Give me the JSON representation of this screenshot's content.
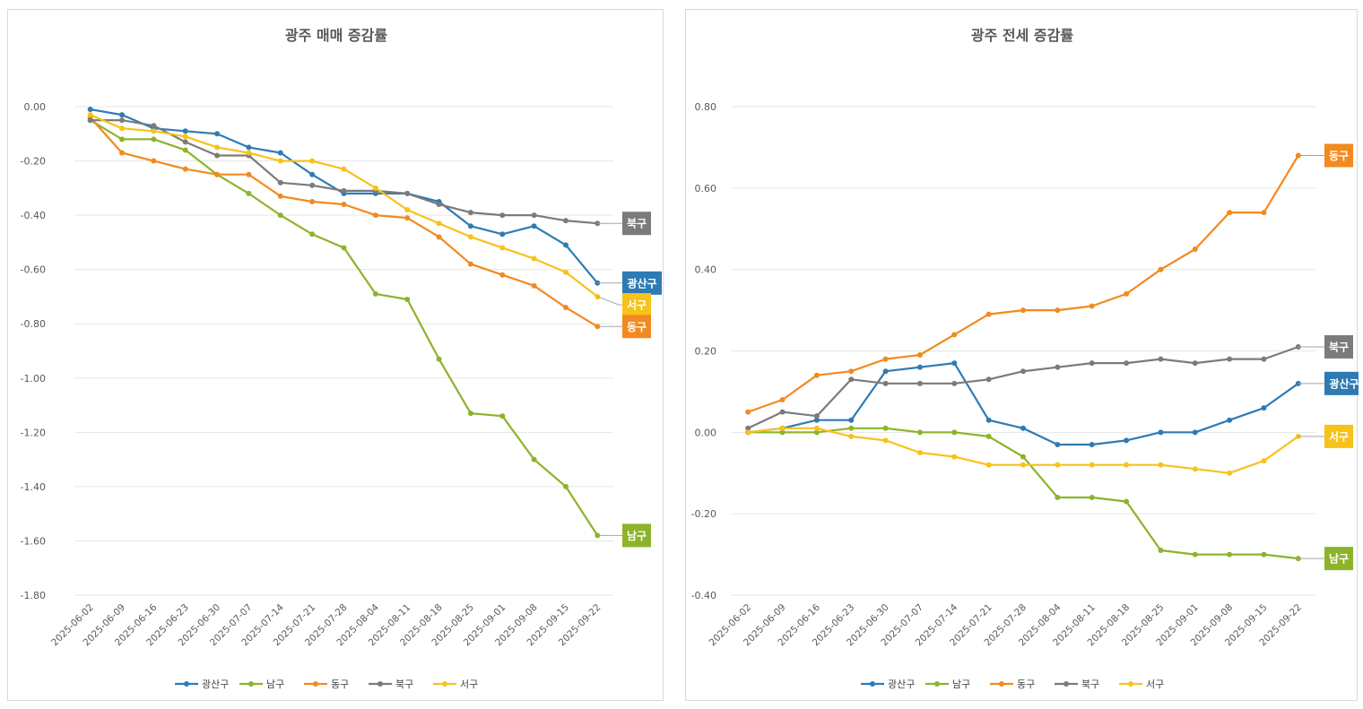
{
  "chart_data": [
    {
      "type": "line",
      "title": "광주 매매 증감률",
      "xlabel": "",
      "ylabel": "",
      "categories": [
        "2025-06-02",
        "2025-06-09",
        "2025-06-16",
        "2025-06-23",
        "2025-06-30",
        "2025-07-07",
        "2025-07-14",
        "2025-07-21",
        "2025-07-28",
        "2025-08-04",
        "2025-08-11",
        "2025-08-18",
        "2025-08-25",
        "2025-09-01",
        "2025-09-08",
        "2025-09-15",
        "2025-09-22"
      ],
      "ylim": [
        -1.8,
        0.0
      ],
      "yticks": [
        "0.00",
        "-0.20",
        "-0.40",
        "-0.60",
        "-0.80",
        "-1.00",
        "-1.20",
        "-1.40",
        "-1.60",
        "-1.80"
      ],
      "grid": true,
      "legend": "bottom",
      "series": [
        {
          "name": "광산구",
          "color": "#2e7bb4",
          "values": [
            -0.01,
            -0.03,
            -0.08,
            -0.09,
            -0.1,
            -0.15,
            -0.17,
            -0.25,
            -0.32,
            -0.32,
            -0.32,
            -0.35,
            -0.44,
            -0.47,
            -0.44,
            -0.51,
            -0.65
          ]
        },
        {
          "name": "남구",
          "color": "#8db32b",
          "values": [
            -0.05,
            -0.12,
            -0.12,
            -0.16,
            -0.25,
            -0.32,
            -0.4,
            -0.47,
            -0.52,
            -0.69,
            -0.71,
            -0.93,
            -1.13,
            -1.14,
            -1.3,
            -1.4,
            -1.58
          ]
        },
        {
          "name": "동구",
          "color": "#f28a1e",
          "values": [
            -0.04,
            -0.17,
            -0.2,
            -0.23,
            -0.25,
            -0.25,
            -0.33,
            -0.35,
            -0.36,
            -0.4,
            -0.41,
            -0.48,
            -0.58,
            -0.62,
            -0.66,
            -0.74,
            -0.81
          ]
        },
        {
          "name": "북구",
          "color": "#7b7b7b",
          "values": [
            -0.05,
            -0.05,
            -0.07,
            -0.13,
            -0.18,
            -0.18,
            -0.28,
            -0.29,
            -0.31,
            -0.31,
            -0.32,
            -0.36,
            -0.39,
            -0.4,
            -0.4,
            -0.42,
            -0.43
          ]
        },
        {
          "name": "서구",
          "color": "#f7c21a",
          "values": [
            -0.03,
            -0.08,
            -0.09,
            -0.11,
            -0.15,
            -0.17,
            -0.2,
            -0.2,
            -0.23,
            -0.3,
            -0.38,
            -0.43,
            -0.48,
            -0.52,
            -0.56,
            -0.61,
            -0.7
          ]
        }
      ],
      "end_labels": [
        {
          "series": "북구",
          "text": "북구",
          "color": "#7b7b7b",
          "anchor": -0.43
        },
        {
          "series": "광산구",
          "text": "광산구",
          "color": "#2e7bb4",
          "anchor": -0.65
        },
        {
          "series": "서구",
          "text": "서구",
          "color": "#f7c21a",
          "anchor": -0.73
        },
        {
          "series": "동구",
          "text": "동구",
          "color": "#f28a1e",
          "anchor": -0.81
        },
        {
          "series": "남구",
          "text": "남구",
          "color": "#8db32b",
          "anchor": -1.58
        }
      ]
    },
    {
      "type": "line",
      "title": "광주 전세 증감률",
      "xlabel": "",
      "ylabel": "",
      "categories": [
        "2025-06-02",
        "2025-06-09",
        "2025-06-16",
        "2025-06-23",
        "2025-06-30",
        "2025-07-07",
        "2025-07-14",
        "2025-07-21",
        "2025-07-28",
        "2025-08-04",
        "2025-08-11",
        "2025-08-18",
        "2025-08-25",
        "2025-09-01",
        "2025-09-08",
        "2025-09-15",
        "2025-09-22"
      ],
      "ylim": [
        -0.4,
        0.8
      ],
      "yticks": [
        "0.80",
        "0.60",
        "0.40",
        "0.20",
        "0.00",
        "-0.20",
        "-0.40"
      ],
      "grid": true,
      "legend": "bottom",
      "series": [
        {
          "name": "광산구",
          "color": "#2e7bb4",
          "values": [
            0.0,
            0.01,
            0.03,
            0.03,
            0.15,
            0.16,
            0.17,
            0.03,
            0.01,
            -0.03,
            -0.03,
            -0.02,
            0.0,
            0.0,
            0.03,
            0.06,
            0.12
          ]
        },
        {
          "name": "남구",
          "color": "#8db32b",
          "values": [
            0.0,
            0.0,
            0.0,
            0.01,
            0.01,
            0.0,
            0.0,
            -0.01,
            -0.06,
            -0.16,
            -0.16,
            -0.17,
            -0.29,
            -0.3,
            -0.3,
            -0.3,
            -0.31
          ]
        },
        {
          "name": "동구",
          "color": "#f28a1e",
          "values": [
            0.05,
            0.08,
            0.14,
            0.15,
            0.18,
            0.19,
            0.24,
            0.29,
            0.3,
            0.3,
            0.31,
            0.34,
            0.4,
            0.45,
            0.54,
            0.54,
            0.68
          ]
        },
        {
          "name": "북구",
          "color": "#7b7b7b",
          "values": [
            0.01,
            0.05,
            0.04,
            0.13,
            0.12,
            0.12,
            0.12,
            0.13,
            0.15,
            0.16,
            0.17,
            0.17,
            0.18,
            0.17,
            0.18,
            0.18,
            0.21
          ]
        },
        {
          "name": "서구",
          "color": "#f7c21a",
          "values": [
            0.0,
            0.01,
            0.01,
            -0.01,
            -0.02,
            -0.05,
            -0.06,
            -0.08,
            -0.08,
            -0.08,
            -0.08,
            -0.08,
            -0.08,
            -0.09,
            -0.1,
            -0.07,
            -0.01
          ]
        }
      ],
      "end_labels": [
        {
          "series": "동구",
          "text": "동구",
          "color": "#f28a1e",
          "anchor": 0.68
        },
        {
          "series": "북구",
          "text": "북구",
          "color": "#7b7b7b",
          "anchor": 0.21
        },
        {
          "series": "광산구",
          "text": "광산구",
          "color": "#2e7bb4",
          "anchor": 0.12
        },
        {
          "series": "서구",
          "text": "서구",
          "color": "#f7c21a",
          "anchor": -0.01
        },
        {
          "series": "남구",
          "text": "남구",
          "color": "#8db32b",
          "anchor": -0.31
        }
      ]
    }
  ]
}
